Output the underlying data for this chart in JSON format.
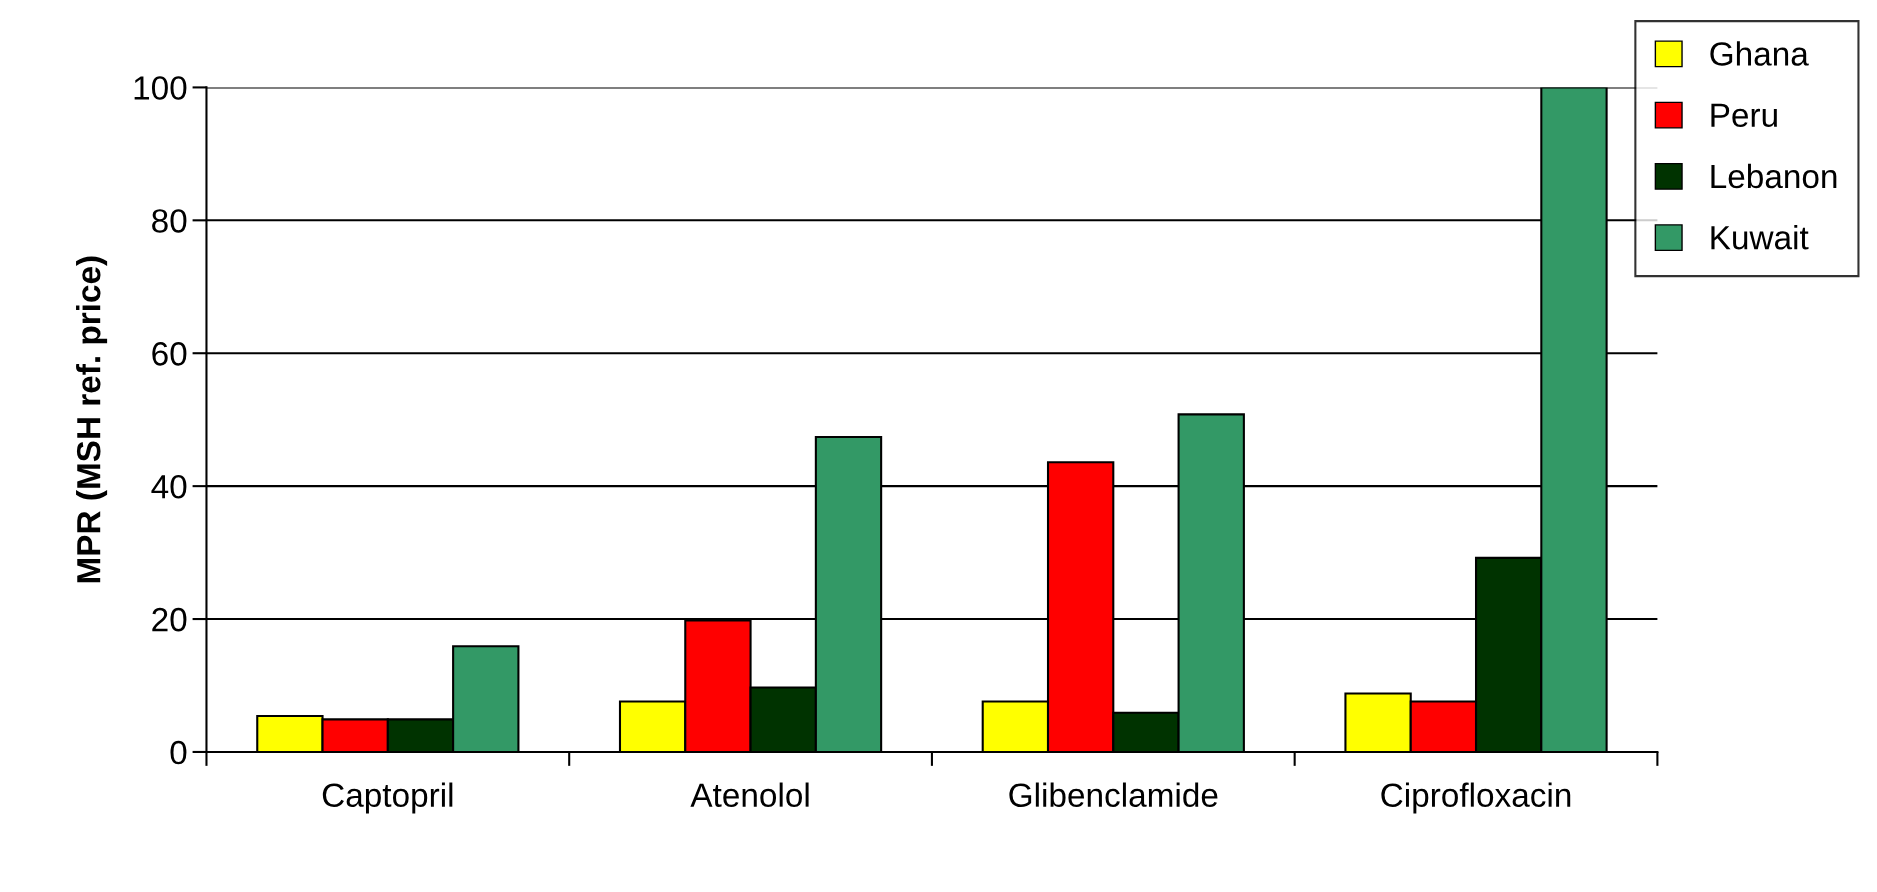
{
  "chart_data": {
    "type": "bar",
    "ylabel": "MPR (MSH ref. price)",
    "categories": [
      "Captopril",
      "Atenolol",
      "Glibenclamide",
      "Ciprofloxacin"
    ],
    "series": [
      {
        "name": "Ghana",
        "color": "#ffff00",
        "values": [
          5.4,
          7.6,
          7.6,
          8.8
        ]
      },
      {
        "name": "Peru",
        "color": "#ff0000",
        "values": [
          4.9,
          19.8,
          43.6,
          7.6
        ]
      },
      {
        "name": "Lebanon",
        "color": "#003300",
        "values": [
          4.9,
          9.7,
          5.9,
          29.2
        ]
      },
      {
        "name": "Kuwait",
        "color": "#339966",
        "values": [
          15.9,
          47.4,
          50.8,
          100
        ]
      }
    ],
    "ylim": [
      0,
      100
    ],
    "yticks": [
      0,
      20,
      40,
      60,
      80,
      100
    ],
    "grid": "y",
    "legend": "top right"
  }
}
